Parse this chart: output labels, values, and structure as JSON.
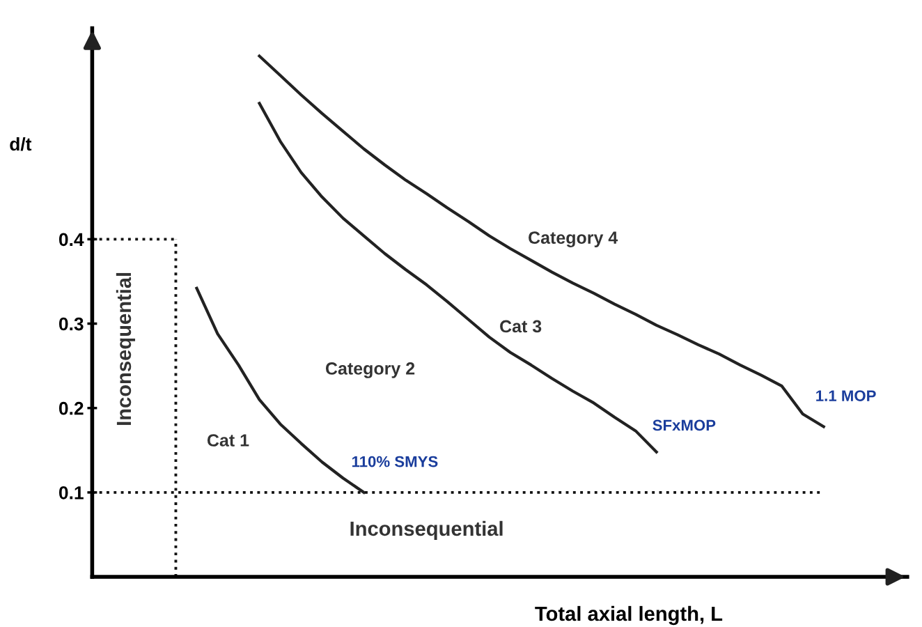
{
  "chart_data": {
    "type": "line",
    "categories": [
      null,
      null,
      null,
      null,
      null,
      null,
      null,
      null,
      null,
      null,
      null,
      null,
      null,
      null,
      null,
      null,
      null,
      null,
      null,
      null,
      null,
      null,
      null,
      null,
      null,
      null,
      null,
      null,
      null,
      null,
      null,
      null,
      null,
      null,
      null,
      null,
      null,
      null,
      null,
      null
    ],
    "series": [
      {
        "name": "110% SMYS",
        "color": "#222222",
        "line_style": "solid",
        "values": [
          null,
          null,
          null,
          null,
          null,
          0.342,
          0.288,
          0.251,
          0.21,
          0.181,
          0.158,
          0.136,
          0.117,
          0.1,
          null,
          null,
          null,
          null,
          null,
          null,
          null,
          null,
          null,
          null,
          null,
          null,
          null,
          null,
          null,
          null,
          null,
          null,
          null,
          null,
          null,
          null,
          null,
          null,
          null,
          null
        ]
      },
      {
        "name": "SFxMOP",
        "color": "#222222",
        "line_style": "solid",
        "values": [
          null,
          null,
          null,
          null,
          null,
          null,
          null,
          null,
          0.561,
          0.516,
          0.479,
          0.45,
          0.425,
          0.404,
          0.383,
          0.364,
          0.346,
          0.326,
          0.305,
          0.284,
          0.266,
          0.251,
          0.235,
          0.22,
          0.206,
          0.189,
          0.173,
          0.148,
          null,
          null,
          null,
          null,
          null,
          null,
          null,
          null,
          null,
          null,
          null,
          null
        ]
      },
      {
        "name": "1.1 MOP",
        "color": "#222222",
        "line_style": "solid",
        "values": [
          null,
          null,
          null,
          null,
          null,
          null,
          null,
          null,
          0.617,
          0.594,
          0.571,
          0.549,
          0.528,
          0.507,
          0.488,
          0.47,
          0.454,
          0.437,
          0.421,
          0.404,
          0.389,
          0.375,
          0.361,
          0.348,
          0.336,
          0.323,
          0.311,
          0.298,
          0.287,
          0.275,
          0.264,
          0.251,
          0.239,
          0.226,
          0.193,
          0.178,
          null,
          null,
          null,
          null
        ]
      },
      {
        "color": "#111111",
        "line_style": "dotted",
        "values": [
          0.1,
          0.1,
          0.1,
          0.1,
          0.1,
          0.1,
          0.1,
          0.1,
          0.1,
          0.1,
          0.1,
          0.1,
          0.1,
          0.1,
          0.1,
          0.1,
          0.1,
          0.1,
          0.1,
          0.1,
          0.1,
          0.1,
          0.1,
          0.1,
          0.1,
          0.1,
          0.1,
          0.1,
          0.1,
          0.1,
          0.1,
          0.1,
          0.1,
          0.1,
          0.1,
          0.1,
          null,
          null,
          null,
          null
        ]
      },
      {
        "color": "#111111",
        "line_style": "dotted",
        "values": [
          0.4,
          0.4,
          0.4,
          0.4,
          0.4,
          null,
          null,
          null,
          null,
          null,
          null,
          null,
          null,
          null,
          null,
          null,
          null,
          null,
          null,
          null,
          null,
          null,
          null,
          null,
          null,
          null,
          null,
          null,
          null,
          null,
          null,
          null,
          null,
          null,
          null,
          null,
          null,
          null,
          null,
          null
        ]
      }
    ],
    "ylim": [
      0,
      0.65
    ],
    "yticks": [
      0.1,
      0.2,
      0.3,
      0.4
    ],
    "ylabel": "d/t",
    "xlabel": "Total axial length, L",
    "annotations": [
      "Category 4",
      "Cat 3",
      "Category 2",
      "Cat 1",
      "Inconsequential",
      "Inconsequential"
    ],
    "tick_labels": "y",
    "grid": false,
    "legend": false,
    "marker": "none"
  }
}
